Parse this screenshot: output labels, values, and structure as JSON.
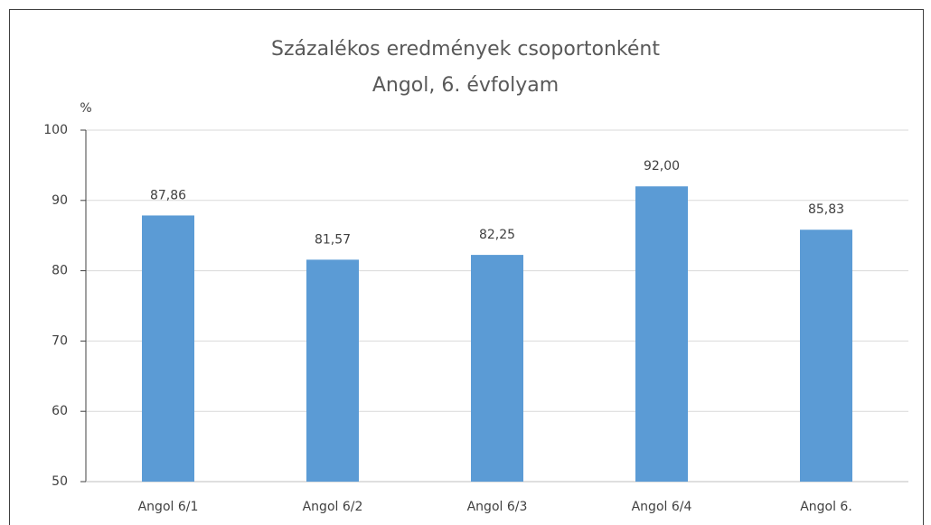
{
  "chart_data": {
    "type": "bar",
    "title": "Százalékos eredmények csoportonként",
    "subtitle": "Angol, 6. évfolyam",
    "y_label": "%",
    "categories": [
      "Angol 6/1",
      "Angol 6/2",
      "Angol 6/3",
      "Angol 6/4",
      "Angol 6."
    ],
    "values": [
      87.86,
      81.57,
      82.25,
      92.0,
      85.83
    ],
    "value_labels": [
      "87,86",
      "81,57",
      "82,25",
      "92,00",
      "85,83"
    ],
    "color": "#5b9bd5",
    "ylim": [
      50,
      100
    ],
    "yticks": [
      50,
      60,
      70,
      80,
      90,
      100
    ],
    "grid": true
  }
}
